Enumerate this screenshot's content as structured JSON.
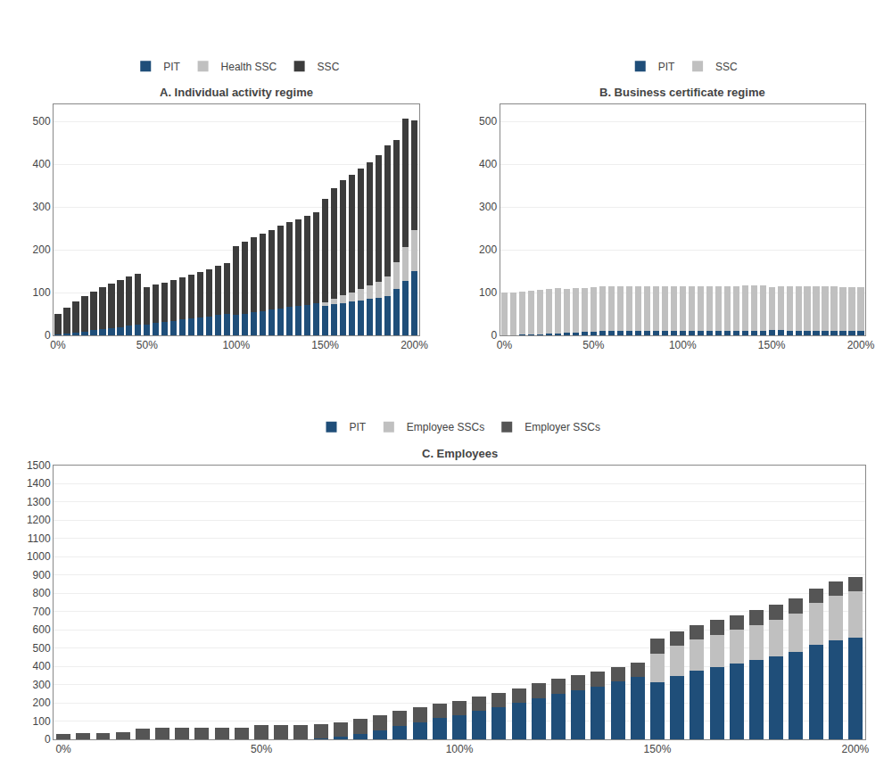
{
  "chart_data": [
    {
      "type": "bar",
      "title": "A. Individual activity regime",
      "stacked": true,
      "grid": true,
      "legend": "top",
      "categories": [
        "0%",
        null,
        null,
        null,
        null,
        null,
        null,
        null,
        null,
        null,
        "50%",
        null,
        null,
        null,
        null,
        null,
        null,
        null,
        null,
        null,
        "100%",
        null,
        null,
        null,
        null,
        null,
        null,
        null,
        null,
        null,
        "150%",
        null,
        null,
        null,
        null,
        null,
        null,
        null,
        null,
        null,
        "200%"
      ],
      "series": [
        {
          "name": "PIT",
          "color": "#1f4e79",
          "values": [
            2,
            4,
            7,
            9,
            12,
            14,
            17,
            19,
            22,
            24,
            26,
            29,
            32,
            34,
            37,
            39,
            42,
            44,
            47,
            50,
            48,
            51,
            54,
            57,
            60,
            63,
            66,
            68,
            71,
            74,
            68,
            72,
            76,
            79,
            82,
            85,
            88,
            91,
            108,
            128,
            150
          ]
        },
        {
          "name": "Health SSC",
          "color": "#c0c0c0",
          "values": [
            0,
            0,
            0,
            0,
            0,
            0,
            0,
            0,
            0,
            0,
            0,
            0,
            0,
            0,
            0,
            0,
            0,
            0,
            0,
            0,
            0,
            0,
            0,
            0,
            0,
            0,
            0,
            0,
            0,
            0,
            10,
            14,
            18,
            22,
            27,
            32,
            38,
            46,
            62,
            78,
            97
          ]
        },
        {
          "name": "SSC",
          "color": "#3c3c3c",
          "values": [
            48,
            60,
            73,
            83,
            91,
            98,
            104,
            110,
            115,
            119,
            86,
            89,
            92,
            96,
            99,
            103,
            107,
            111,
            115,
            119,
            160,
            168,
            175,
            181,
            187,
            193,
            198,
            203,
            208,
            213,
            242,
            259,
            268,
            275,
            281,
            288,
            296,
            308,
            287,
            300,
            255
          ]
        }
      ],
      "ylim": [
        0,
        540
      ],
      "yticks": [
        0,
        100,
        200,
        300,
        400,
        500
      ]
    },
    {
      "type": "bar",
      "title": "B. Business certificate regime",
      "stacked": true,
      "grid": true,
      "legend": "top",
      "categories": [
        "0%",
        null,
        null,
        null,
        null,
        null,
        null,
        null,
        null,
        null,
        "50%",
        null,
        null,
        null,
        null,
        null,
        null,
        null,
        null,
        null,
        "100%",
        null,
        null,
        null,
        null,
        null,
        null,
        null,
        null,
        null,
        "150%",
        null,
        null,
        null,
        null,
        null,
        null,
        null,
        null,
        null,
        "200%"
      ],
      "series": [
        {
          "name": "PIT",
          "color": "#1f4e79",
          "values": [
            0,
            0,
            1,
            2,
            3,
            4,
            5,
            6,
            7,
            8,
            9,
            10,
            10,
            10,
            10,
            10,
            10,
            10,
            10,
            10,
            10,
            10,
            10,
            10,
            10,
            10,
            10,
            10,
            10,
            10,
            12,
            12,
            11,
            11,
            11,
            11,
            11,
            11,
            10,
            10,
            10
          ]
        },
        {
          "name": "SSC",
          "color": "#c0c0c0",
          "values": [
            100,
            101,
            101,
            102,
            103,
            104,
            105,
            103,
            103,
            103,
            103,
            104,
            104,
            104,
            104,
            104,
            105,
            105,
            105,
            105,
            105,
            105,
            105,
            105,
            105,
            105,
            105,
            106,
            106,
            106,
            100,
            102,
            103,
            103,
            103,
            103,
            103,
            103,
            103,
            103,
            103
          ]
        }
      ],
      "ylim": [
        0,
        540
      ],
      "yticks": [
        0,
        100,
        200,
        300,
        400,
        500
      ]
    },
    {
      "type": "bar",
      "title": "C. Employees",
      "stacked": true,
      "grid": true,
      "legend": "top",
      "categories": [
        "0%",
        null,
        null,
        null,
        null,
        null,
        null,
        null,
        null,
        null,
        "50%",
        null,
        null,
        null,
        null,
        null,
        null,
        null,
        null,
        null,
        "100%",
        null,
        null,
        null,
        null,
        null,
        null,
        null,
        null,
        null,
        "150%",
        null,
        null,
        null,
        null,
        null,
        null,
        null,
        null,
        null,
        "200%"
      ],
      "series": [
        {
          "name": "PIT",
          "color": "#1f4e79",
          "values": [
            0,
            0,
            0,
            0,
            0,
            0,
            0,
            0,
            0,
            0,
            0,
            0,
            0,
            5,
            15,
            30,
            50,
            75,
            95,
            115,
            130,
            155,
            175,
            200,
            225,
            250,
            270,
            290,
            315,
            340,
            310,
            345,
            375,
            395,
            415,
            435,
            455,
            480,
            515,
            540,
            555
          ]
        },
        {
          "name": "Employee SSCs",
          "color": "#c0c0c0",
          "values": [
            0,
            0,
            0,
            0,
            0,
            0,
            0,
            0,
            0,
            0,
            0,
            0,
            0,
            0,
            0,
            0,
            0,
            0,
            0,
            0,
            0,
            0,
            0,
            0,
            0,
            0,
            0,
            0,
            0,
            0,
            160,
            165,
            172,
            178,
            185,
            192,
            200,
            210,
            230,
            245,
            255
          ]
        },
        {
          "name": "Employer SSCs",
          "color": "#555555",
          "values": [
            30,
            35,
            35,
            40,
            60,
            65,
            65,
            65,
            65,
            65,
            80,
            80,
            80,
            80,
            80,
            80,
            80,
            80,
            80,
            80,
            80,
            80,
            80,
            80,
            80,
            80,
            80,
            80,
            80,
            80,
            80,
            80,
            80,
            80,
            80,
            80,
            80,
            80,
            80,
            80,
            80
          ]
        }
      ],
      "ylim": [
        0,
        1500
      ],
      "yticks": [
        0,
        100,
        200,
        300,
        400,
        500,
        600,
        700,
        800,
        900,
        1000,
        1100,
        1200,
        1300,
        1400,
        1500
      ]
    }
  ]
}
